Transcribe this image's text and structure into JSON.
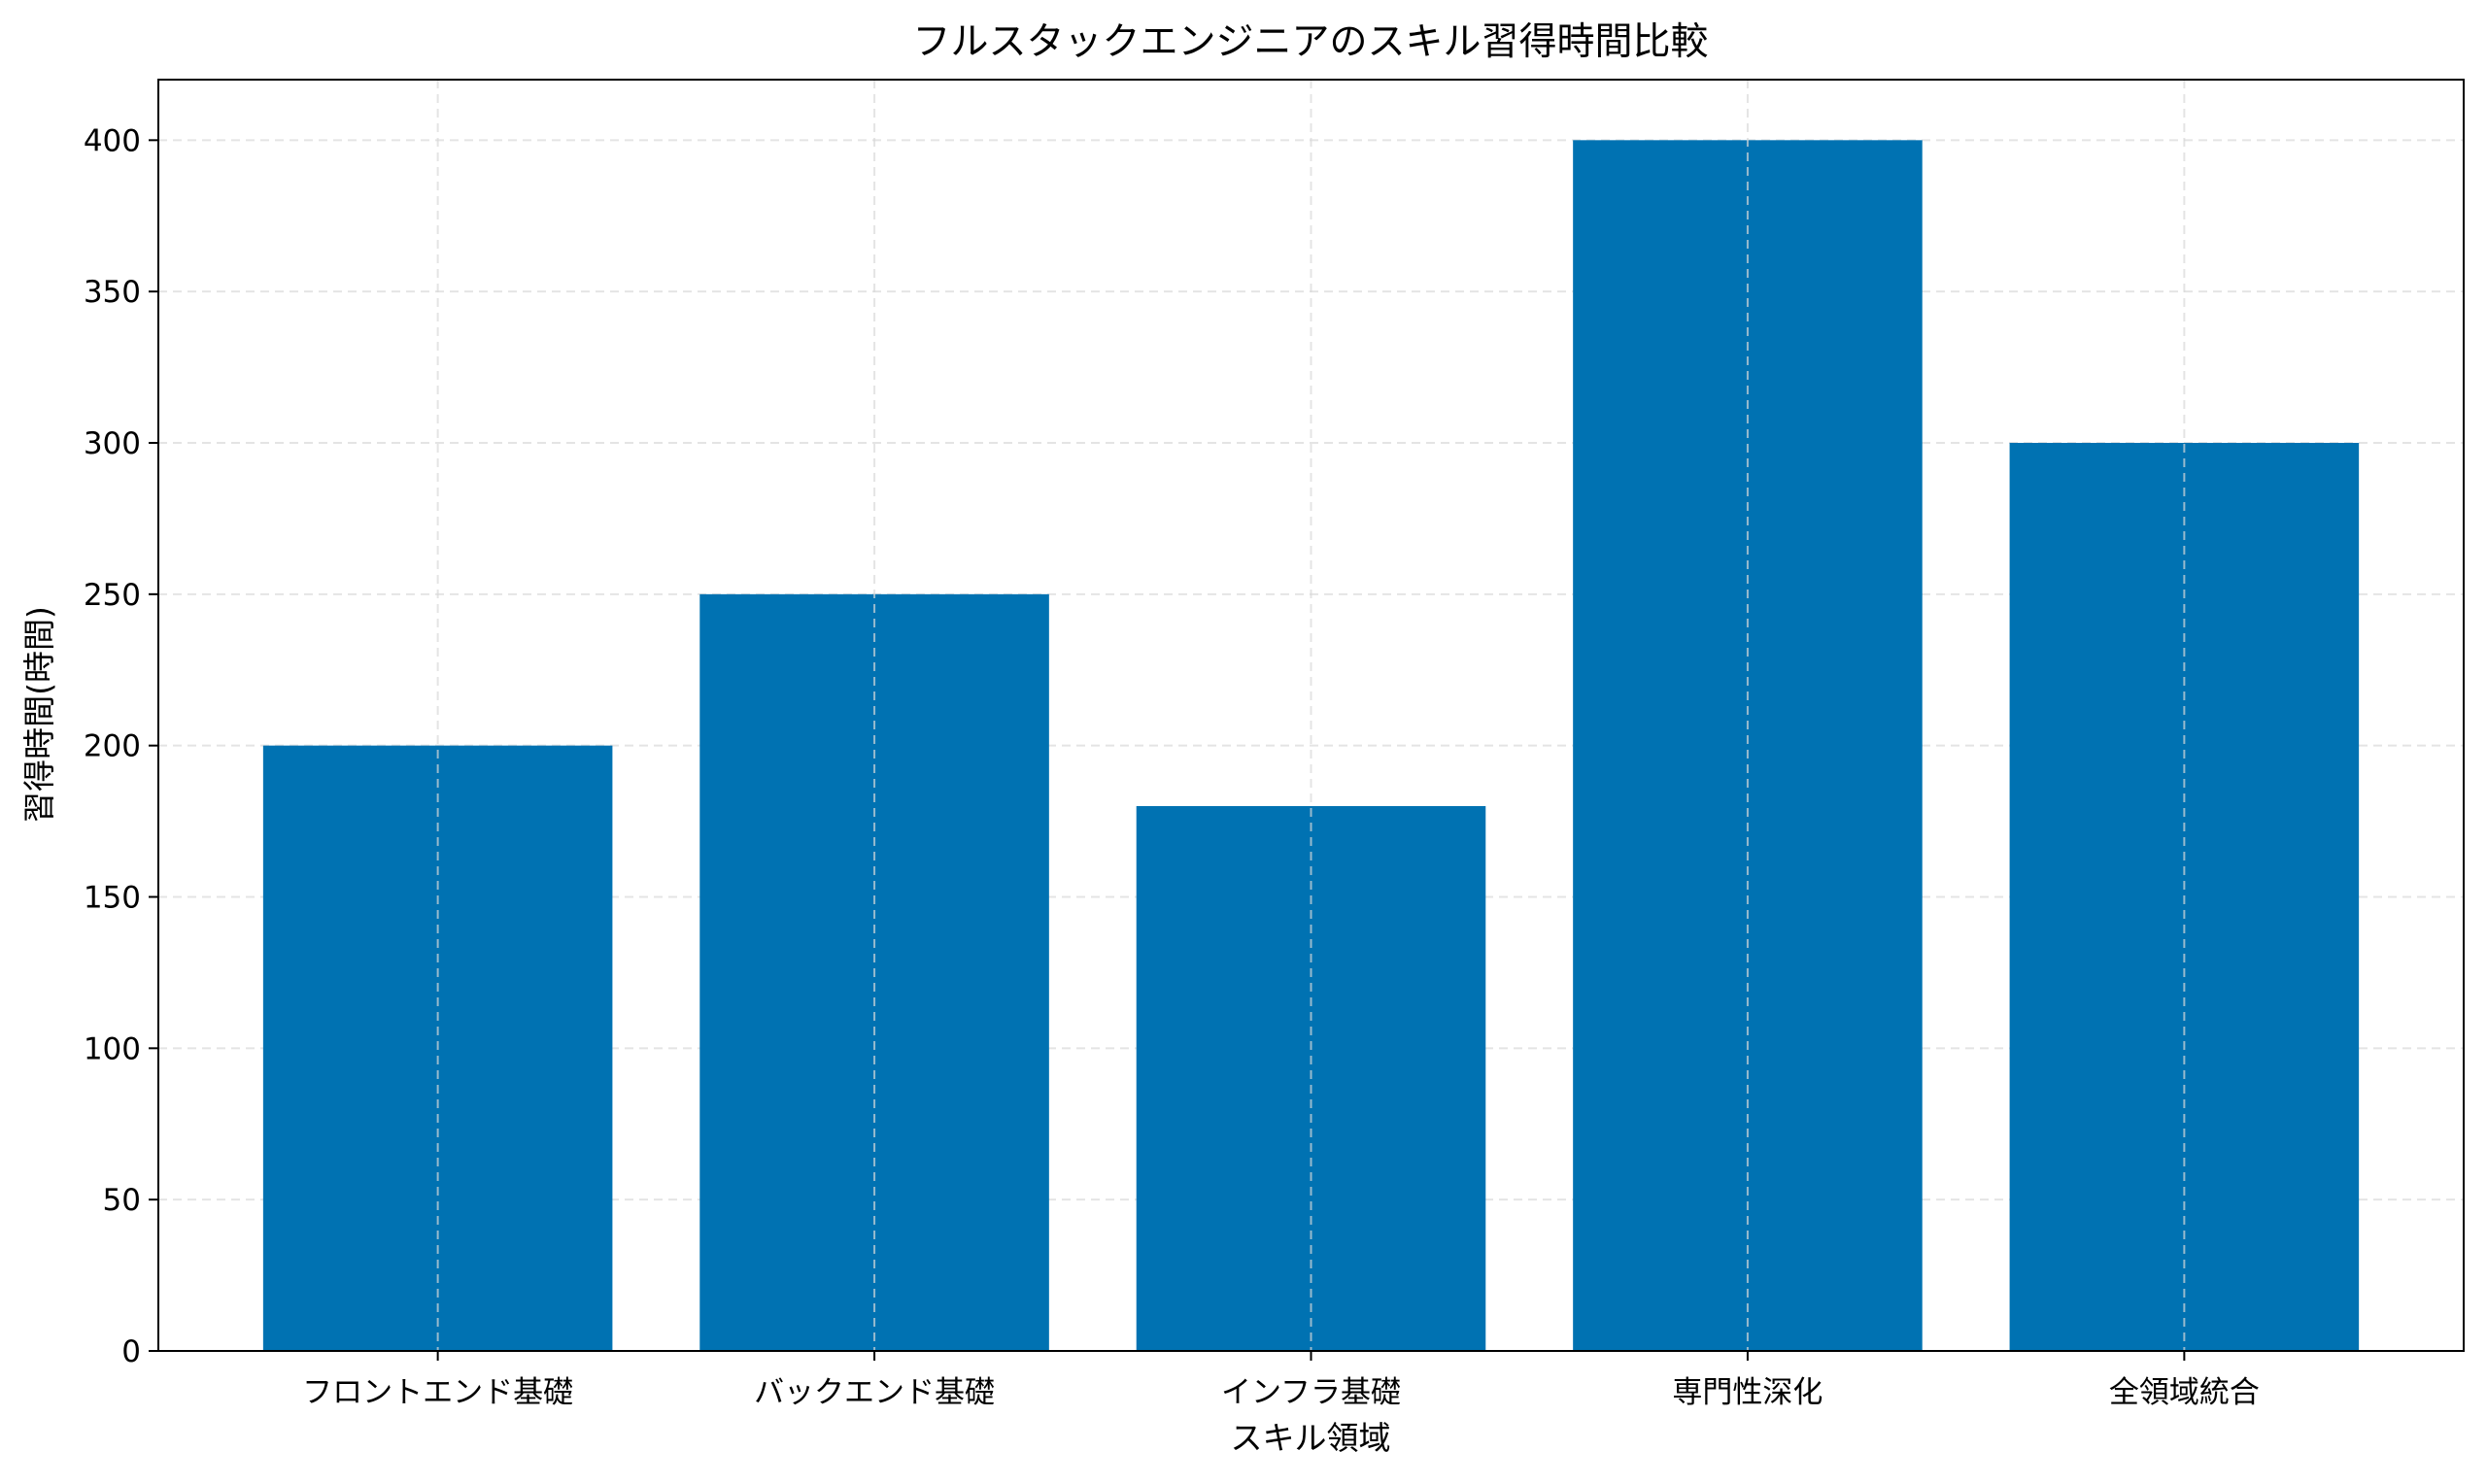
{
  "chart_data": {
    "type": "bar",
    "title": "フルスタックエンジニアのスキル習得時間比較",
    "xlabel": "スキル領域",
    "ylabel": "習得時間(時間)",
    "categories": [
      "フロントエンド基礎",
      "バックエンド基礎",
      "インフラ基礎",
      "専門性深化",
      "全領域統合"
    ],
    "values": [
      200,
      250,
      180,
      400,
      300
    ],
    "ylim": [
      0,
      420
    ],
    "yticks": [
      0,
      50,
      100,
      150,
      200,
      250,
      300,
      350,
      400
    ],
    "grid": true,
    "bar_color": "#0072b2"
  }
}
